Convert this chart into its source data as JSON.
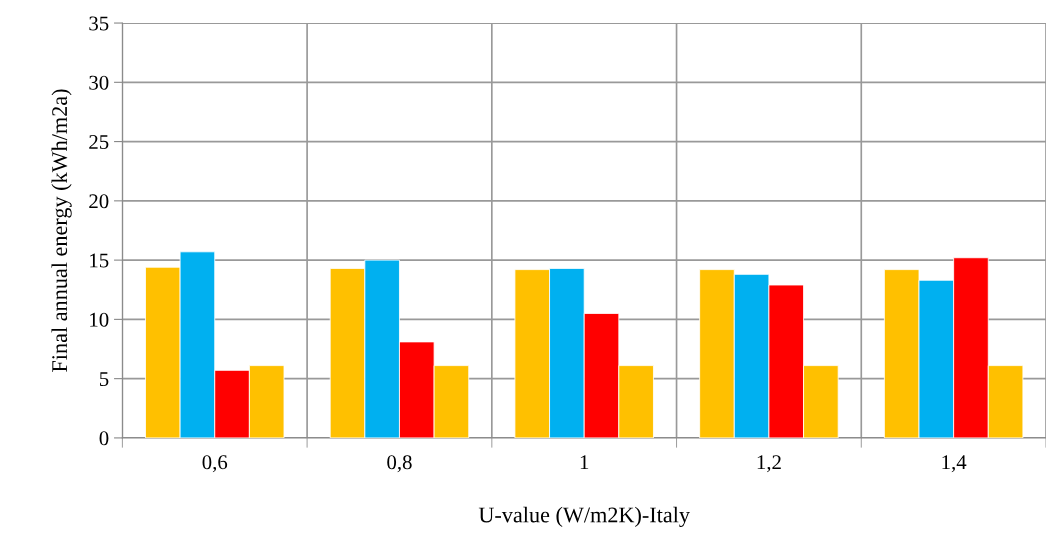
{
  "chart_data": {
    "type": "bar",
    "xlabel": "U-value (W/m2K)-Italy",
    "ylabel": "Final annual energy (kWh/m2a)",
    "categories": [
      "0,6",
      "0,8",
      "1",
      "1,2",
      "1,4"
    ],
    "series": [
      {
        "color": "#ffc000",
        "values": [
          14.4,
          14.3,
          14.2,
          14.2,
          14.2
        ]
      },
      {
        "color": "#00b0f0",
        "values": [
          15.7,
          15.0,
          14.3,
          13.8,
          13.3
        ]
      },
      {
        "color": "#ff0000",
        "values": [
          5.7,
          8.1,
          10.5,
          12.9,
          15.2
        ]
      },
      {
        "color": "#ffc000",
        "values": [
          6.1,
          6.1,
          6.1,
          6.1,
          6.1
        ]
      }
    ],
    "ylim": [
      0,
      35
    ],
    "yticks": [
      0,
      5,
      10,
      15,
      20,
      25,
      30,
      35
    ],
    "grid": true,
    "legend": false
  }
}
